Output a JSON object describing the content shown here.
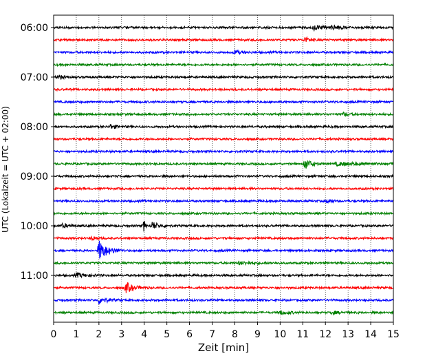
{
  "chart_data": {
    "type": "line",
    "title": "",
    "xlabel": "Zeit  [min]",
    "ylabel": "UTC (Lokalzeit = UTC + 02:00)",
    "xlim": [
      0,
      15
    ],
    "x_ticks": [
      0,
      1,
      2,
      3,
      4,
      5,
      6,
      7,
      8,
      9,
      10,
      11,
      12,
      13,
      14,
      15
    ],
    "y_tick_labels": [
      "06:00",
      "07:00",
      "08:00",
      "09:00",
      "10:00",
      "11:00"
    ],
    "grid": "vertical dotted",
    "trace_colors": [
      "#000000",
      "#ff0000",
      "#0000ff",
      "#008000"
    ],
    "traces_per_hour": 4,
    "minutes_per_trace": 15,
    "series": [
      {
        "start": "06:00",
        "events": [
          {
            "t": 11.5,
            "amp": 0.35,
            "dur": 0.9
          },
          {
            "t": 12.3,
            "amp": 0.3,
            "dur": 0.8
          }
        ]
      },
      {
        "start": "06:15",
        "events": [
          {
            "t": 11.1,
            "amp": 0.45,
            "dur": 0.4
          }
        ]
      },
      {
        "start": "06:30",
        "events": [
          {
            "t": 8.0,
            "amp": 0.3,
            "dur": 0.6
          }
        ]
      },
      {
        "start": "06:45",
        "events": []
      },
      {
        "start": "07:00",
        "events": [
          {
            "t": 0.2,
            "amp": 0.35,
            "dur": 0.4
          }
        ]
      },
      {
        "start": "07:15",
        "events": []
      },
      {
        "start": "07:30",
        "events": []
      },
      {
        "start": "07:45",
        "events": [
          {
            "t": 12.8,
            "amp": 0.25,
            "dur": 0.5
          }
        ]
      },
      {
        "start": "08:00",
        "events": [
          {
            "t": 2.5,
            "amp": 0.35,
            "dur": 0.5
          }
        ]
      },
      {
        "start": "08:15",
        "events": []
      },
      {
        "start": "08:30",
        "events": []
      },
      {
        "start": "08:45",
        "events": [
          {
            "t": 11.1,
            "amp": 0.8,
            "dur": 0.6
          },
          {
            "t": 12.5,
            "amp": 0.25,
            "dur": 2.5
          }
        ]
      },
      {
        "start": "09:00",
        "events": []
      },
      {
        "start": "09:15",
        "events": []
      },
      {
        "start": "09:30",
        "events": [
          {
            "t": 12.1,
            "amp": 0.35,
            "dur": 0.4
          }
        ]
      },
      {
        "start": "09:45",
        "events": []
      },
      {
        "start": "10:00",
        "events": [
          {
            "t": 0.4,
            "amp": 0.3,
            "dur": 0.6
          },
          {
            "t": 4.0,
            "amp": 1.0,
            "dur": 0.1
          },
          {
            "t": 4.35,
            "amp": 0.6,
            "dur": 0.6
          }
        ]
      },
      {
        "start": "10:15",
        "events": [
          {
            "t": 1.7,
            "amp": 0.3,
            "dur": 0.4
          }
        ]
      },
      {
        "start": "10:30",
        "events": [
          {
            "t": 2.0,
            "amp": 1.6,
            "dur": 0.8
          }
        ]
      },
      {
        "start": "10:45",
        "events": [
          {
            "t": 8.2,
            "amp": 0.2,
            "dur": 1.4
          }
        ]
      },
      {
        "start": "11:00",
        "events": [
          {
            "t": 1.0,
            "amp": 0.35,
            "dur": 0.9
          }
        ]
      },
      {
        "start": "11:15",
        "events": [
          {
            "t": 3.2,
            "amp": 0.8,
            "dur": 0.7
          }
        ]
      },
      {
        "start": "11:30",
        "events": [
          {
            "t": 2.0,
            "amp": 0.55,
            "dur": 0.7
          }
        ]
      },
      {
        "start": "11:45",
        "events": [
          {
            "t": 10.0,
            "amp": 0.3,
            "dur": 0.7
          },
          {
            "t": 12.3,
            "amp": 0.2,
            "dur": 0.7
          }
        ]
      }
    ]
  }
}
